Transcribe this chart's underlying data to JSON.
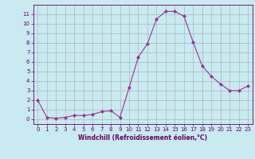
{
  "x": [
    0,
    1,
    2,
    3,
    4,
    5,
    6,
    7,
    8,
    9,
    10,
    11,
    12,
    13,
    14,
    15,
    16,
    17,
    18,
    19,
    20,
    21,
    22,
    23
  ],
  "y": [
    2,
    0.2,
    0.1,
    0.2,
    0.4,
    0.4,
    0.5,
    0.8,
    0.9,
    0.2,
    3.3,
    6.5,
    7.9,
    10.5,
    11.3,
    11.3,
    10.8,
    8.1,
    5.6,
    4.5,
    3.7,
    3.0,
    3.0,
    3.5
  ],
  "line_color": "#993399",
  "marker": "D",
  "marker_size": 2,
  "bg_color": "#c8eaf0",
  "grid_color": "#aaaaaa",
  "xlabel": "Windchill (Refroidissement éolien,°C)",
  "xlim": [
    -0.5,
    23.5
  ],
  "ylim": [
    -0.5,
    12
  ],
  "xticks": [
    0,
    1,
    2,
    3,
    4,
    5,
    6,
    7,
    8,
    9,
    10,
    11,
    12,
    13,
    14,
    15,
    16,
    17,
    18,
    19,
    20,
    21,
    22,
    23
  ],
  "yticks": [
    0,
    1,
    2,
    3,
    4,
    5,
    6,
    7,
    8,
    9,
    10,
    11
  ],
  "tick_color": "#660066",
  "label_color": "#660066",
  "label_fontsize": 5.5,
  "tick_fontsize": 5.0,
  "spine_color": "#660066"
}
